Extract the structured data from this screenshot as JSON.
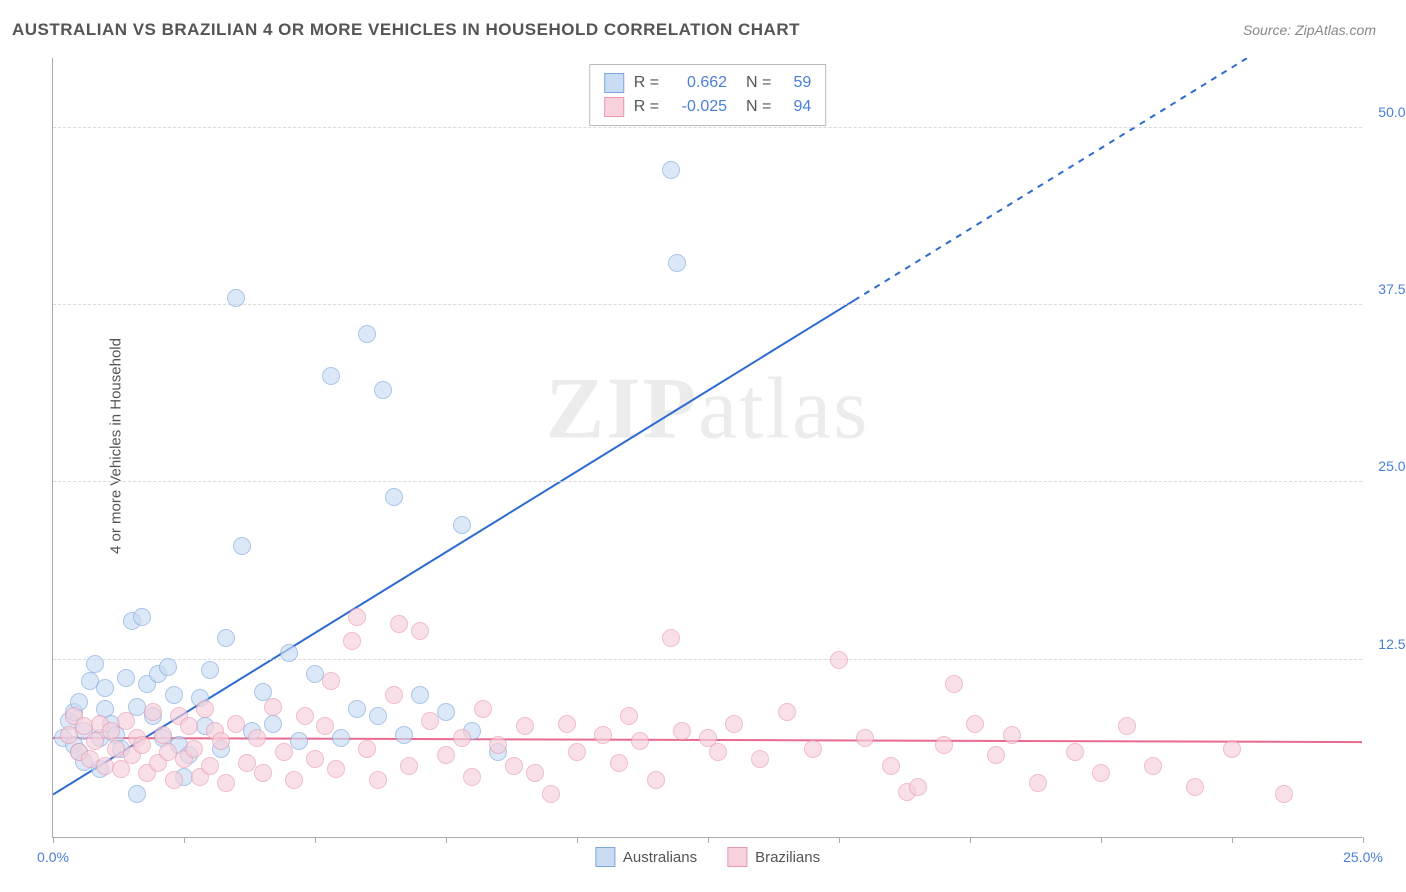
{
  "title": "AUSTRALIAN VS BRAZILIAN 4 OR MORE VEHICLES IN HOUSEHOLD CORRELATION CHART",
  "source": "Source: ZipAtlas.com",
  "ylabel": "4 or more Vehicles in Household",
  "watermark_a": "ZIP",
  "watermark_b": "atlas",
  "chart": {
    "type": "scatter",
    "x_domain": [
      0,
      25
    ],
    "y_domain": [
      0,
      55
    ],
    "x_ticks": [
      0,
      2.5,
      5,
      7.5,
      10,
      12.5,
      15,
      17.5,
      20,
      22.5,
      25
    ],
    "x_tick_labels": {
      "0": "0.0%",
      "25": "25.0%"
    },
    "y_gridlines": [
      12.5,
      25.0,
      37.5,
      50.0
    ],
    "y_tick_labels": [
      "12.5%",
      "25.0%",
      "37.5%",
      "50.0%"
    ],
    "background_color": "#ffffff",
    "grid_color": "#d9d9d9",
    "axis_color": "#aaaaaa",
    "tick_label_color": "#4a7fd8",
    "marker_radius": 9,
    "marker_border_width": 1.5,
    "series": [
      {
        "name": "Australians",
        "fill": "#c9dcf3",
        "stroke": "#7fa8de",
        "fill_opacity": 0.65,
        "R": "0.662",
        "N": "59",
        "trend": {
          "color": "#2d6bd1",
          "width": 2,
          "x1": 0,
          "y1": 3.0,
          "x2": 25,
          "y2": 60.0,
          "dash_after_x": 15.3
        },
        "points": [
          [
            0.2,
            7.0
          ],
          [
            0.3,
            8.2
          ],
          [
            0.4,
            6.5
          ],
          [
            0.4,
            8.8
          ],
          [
            0.5,
            9.5
          ],
          [
            0.5,
            6.0
          ],
          [
            0.6,
            7.5
          ],
          [
            0.6,
            5.3
          ],
          [
            0.7,
            11.0
          ],
          [
            0.8,
            12.2
          ],
          [
            0.9,
            7.0
          ],
          [
            1.0,
            9.0
          ],
          [
            1.0,
            10.5
          ],
          [
            1.1,
            8.0
          ],
          [
            1.2,
            7.2
          ],
          [
            1.3,
            6.2
          ],
          [
            1.4,
            11.2
          ],
          [
            1.5,
            15.2
          ],
          [
            1.6,
            9.2
          ],
          [
            1.7,
            15.5
          ],
          [
            1.8,
            10.8
          ],
          [
            1.9,
            8.5
          ],
          [
            2.0,
            11.5
          ],
          [
            2.1,
            7.0
          ],
          [
            2.2,
            12.0
          ],
          [
            2.3,
            10.0
          ],
          [
            2.4,
            6.5
          ],
          [
            2.6,
            5.8
          ],
          [
            2.8,
            9.8
          ],
          [
            2.9,
            7.8
          ],
          [
            3.0,
            11.8
          ],
          [
            3.2,
            6.2
          ],
          [
            3.3,
            14.0
          ],
          [
            3.5,
            38.0
          ],
          [
            3.6,
            20.5
          ],
          [
            3.8,
            7.5
          ],
          [
            4.0,
            10.2
          ],
          [
            4.2,
            8.0
          ],
          [
            4.5,
            13.0
          ],
          [
            4.7,
            6.8
          ],
          [
            5.0,
            11.5
          ],
          [
            5.3,
            32.5
          ],
          [
            5.5,
            7.0
          ],
          [
            5.8,
            9.0
          ],
          [
            6.0,
            35.5
          ],
          [
            6.2,
            8.5
          ],
          [
            6.3,
            31.5
          ],
          [
            6.5,
            24.0
          ],
          [
            6.7,
            7.2
          ],
          [
            7.0,
            10.0
          ],
          [
            7.5,
            8.8
          ],
          [
            7.8,
            22.0
          ],
          [
            8.0,
            7.5
          ],
          [
            8.5,
            6.0
          ],
          [
            11.8,
            47.0
          ],
          [
            11.9,
            40.5
          ],
          [
            1.6,
            3.0
          ],
          [
            0.9,
            4.8
          ],
          [
            2.5,
            4.2
          ]
        ]
      },
      {
        "name": "Brazilians",
        "fill": "#f7d1dc",
        "stroke": "#e89ab0",
        "fill_opacity": 0.65,
        "R": "-0.025",
        "N": "94",
        "trend": {
          "color": "#e86b8f",
          "width": 2,
          "x1": 0,
          "y1": 7.0,
          "x2": 25,
          "y2": 6.7
        },
        "points": [
          [
            0.3,
            7.2
          ],
          [
            0.4,
            8.5
          ],
          [
            0.5,
            6.0
          ],
          [
            0.6,
            7.8
          ],
          [
            0.7,
            5.5
          ],
          [
            0.8,
            6.8
          ],
          [
            0.9,
            8.0
          ],
          [
            1.0,
            5.0
          ],
          [
            1.1,
            7.5
          ],
          [
            1.2,
            6.2
          ],
          [
            1.3,
            4.8
          ],
          [
            1.4,
            8.2
          ],
          [
            1.5,
            5.8
          ],
          [
            1.6,
            7.0
          ],
          [
            1.7,
            6.5
          ],
          [
            1.8,
            4.5
          ],
          [
            1.9,
            8.8
          ],
          [
            2.0,
            5.2
          ],
          [
            2.1,
            7.2
          ],
          [
            2.2,
            6.0
          ],
          [
            2.3,
            4.0
          ],
          [
            2.4,
            8.5
          ],
          [
            2.5,
            5.5
          ],
          [
            2.6,
            7.8
          ],
          [
            2.7,
            6.2
          ],
          [
            2.8,
            4.2
          ],
          [
            2.9,
            9.0
          ],
          [
            3.0,
            5.0
          ],
          [
            3.1,
            7.5
          ],
          [
            3.2,
            6.8
          ],
          [
            3.3,
            3.8
          ],
          [
            3.5,
            8.0
          ],
          [
            3.7,
            5.2
          ],
          [
            3.9,
            7.0
          ],
          [
            4.0,
            4.5
          ],
          [
            4.2,
            9.2
          ],
          [
            4.4,
            6.0
          ],
          [
            4.6,
            4.0
          ],
          [
            4.8,
            8.5
          ],
          [
            5.0,
            5.5
          ],
          [
            5.2,
            7.8
          ],
          [
            5.3,
            11.0
          ],
          [
            5.4,
            4.8
          ],
          [
            5.7,
            13.8
          ],
          [
            5.8,
            15.5
          ],
          [
            6.0,
            6.2
          ],
          [
            6.2,
            4.0
          ],
          [
            6.5,
            10.0
          ],
          [
            6.6,
            15.0
          ],
          [
            6.8,
            5.0
          ],
          [
            7.0,
            14.5
          ],
          [
            7.2,
            8.2
          ],
          [
            7.5,
            5.8
          ],
          [
            7.8,
            7.0
          ],
          [
            8.0,
            4.2
          ],
          [
            8.2,
            9.0
          ],
          [
            8.5,
            6.5
          ],
          [
            8.8,
            5.0
          ],
          [
            9.0,
            7.8
          ],
          [
            9.2,
            4.5
          ],
          [
            9.5,
            3.0
          ],
          [
            9.8,
            8.0
          ],
          [
            10.0,
            6.0
          ],
          [
            10.5,
            7.2
          ],
          [
            10.8,
            5.2
          ],
          [
            11.0,
            8.5
          ],
          [
            11.2,
            6.8
          ],
          [
            11.5,
            4.0
          ],
          [
            11.8,
            14.0
          ],
          [
            12.0,
            7.5
          ],
          [
            12.5,
            7.0
          ],
          [
            12.7,
            6.0
          ],
          [
            13.0,
            8.0
          ],
          [
            13.5,
            5.5
          ],
          [
            14.0,
            8.8
          ],
          [
            14.5,
            6.2
          ],
          [
            15.0,
            12.5
          ],
          [
            15.5,
            7.0
          ],
          [
            16.0,
            5.0
          ],
          [
            16.3,
            3.2
          ],
          [
            16.5,
            3.5
          ],
          [
            17.0,
            6.5
          ],
          [
            17.2,
            10.8
          ],
          [
            17.6,
            8.0
          ],
          [
            18.0,
            5.8
          ],
          [
            18.3,
            7.2
          ],
          [
            18.8,
            3.8
          ],
          [
            19.5,
            6.0
          ],
          [
            20.0,
            4.5
          ],
          [
            20.5,
            7.8
          ],
          [
            21.0,
            5.0
          ],
          [
            21.8,
            3.5
          ],
          [
            22.5,
            6.2
          ],
          [
            23.5,
            3.0
          ]
        ]
      }
    ],
    "legend_bottom": [
      "Australians",
      "Brazilians"
    ]
  }
}
